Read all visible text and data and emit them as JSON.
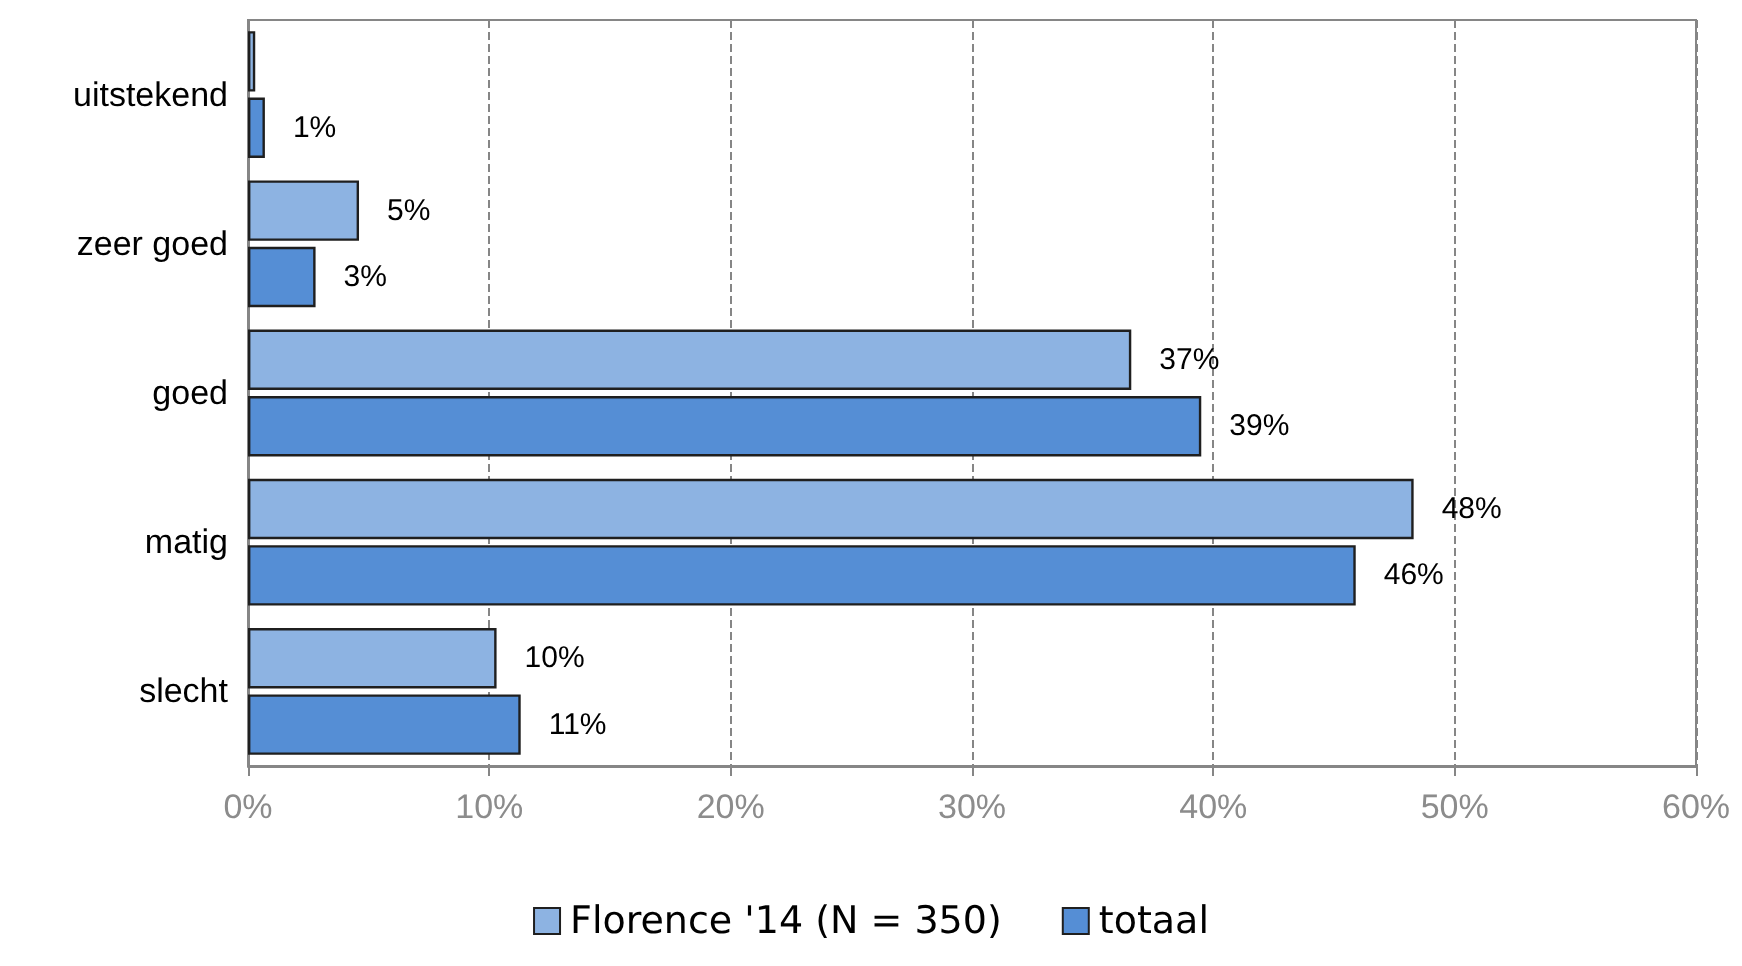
{
  "chart_data": {
    "type": "bar",
    "orientation": "horizontal",
    "categories": [
      "uitstekend",
      "zeer goed",
      "goed",
      "matig",
      "slecht"
    ],
    "series": [
      {
        "name": "Florence '14 (N = 350)",
        "color": "#8db3e2",
        "values": [
          0.3,
          4.6,
          36.6,
          48.3,
          10.3
        ],
        "value_labels": [
          null,
          "5%",
          "37%",
          "48%",
          "10%"
        ]
      },
      {
        "name": "totaal",
        "color": "#558ed5",
        "values": [
          0.7,
          2.8,
          39.5,
          45.9,
          11.3
        ],
        "value_labels": [
          "1%",
          "3%",
          "39%",
          "46%",
          "11%"
        ]
      }
    ],
    "xlim": [
      0,
      60
    ],
    "xticks": [
      {
        "value": 0,
        "label": "0%"
      },
      {
        "value": 10,
        "label": "10%"
      },
      {
        "value": 20,
        "label": "20%"
      },
      {
        "value": 30,
        "label": "30%"
      },
      {
        "value": 40,
        "label": "40%"
      },
      {
        "value": 50,
        "label": "50%"
      },
      {
        "value": 60,
        "label": "60%"
      }
    ],
    "grid": "x",
    "legend": "bottom"
  }
}
